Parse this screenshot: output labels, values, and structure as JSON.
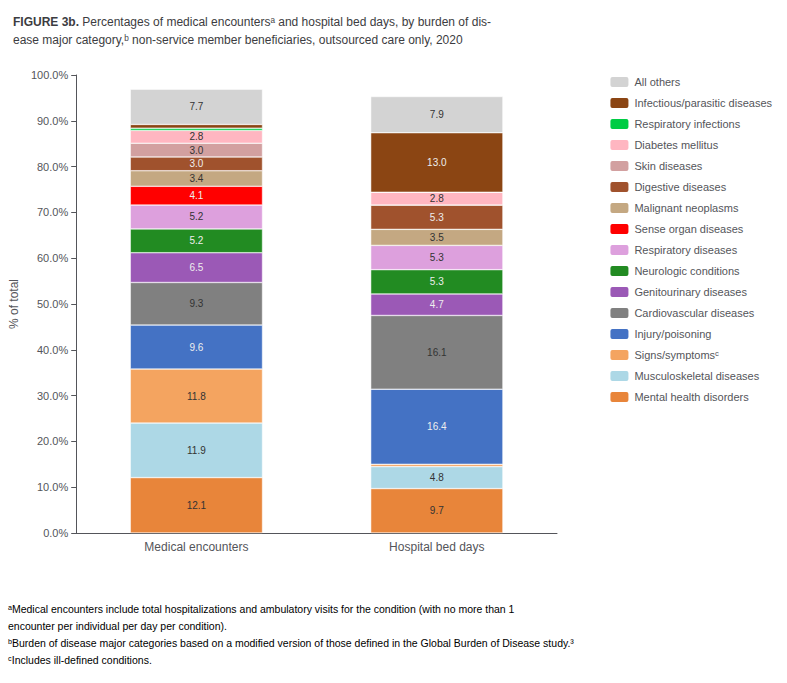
{
  "chart_data": {
    "type": "bar",
    "title": "FIGURE 3b.",
    "subtitle": "Percentages of medical encountersᵃ and hospital bed days, by burden of dis-\nease major category,ᵇ non-service member beneficiaries, outsourced care only, 2020",
    "categories": [
      "Medical encounters",
      "Hospital bed days"
    ],
    "series": [
      {
        "name": "Mental health disorders",
        "color": "#E8853A",
        "values": [
          12.1,
          9.7
        ],
        "value_labels": [
          "12.1",
          "9.7"
        ]
      },
      {
        "name": "Musculoskeletal diseases",
        "color": "#ADD8E6",
        "values": [
          11.9,
          4.8
        ],
        "value_labels": [
          "11.9",
          "4.8"
        ]
      },
      {
        "name": "Signs/symptomsᶜ",
        "color": "#F4A460",
        "values": [
          11.8,
          0.5
        ],
        "value_labels": [
          "11.8",
          null
        ]
      },
      {
        "name": "Injury/poisoning",
        "color": "#4472C4",
        "values": [
          9.6,
          16.4
        ],
        "value_labels": [
          "9.6",
          "16.4"
        ]
      },
      {
        "name": "Cardiovascular diseases",
        "color": "#808080",
        "values": [
          9.3,
          16.1
        ],
        "value_labels": [
          "9.3",
          "16.1"
        ]
      },
      {
        "name": "Genitourinary diseases",
        "color": "#9B59B6",
        "values": [
          6.5,
          4.7
        ],
        "value_labels": [
          "6.5",
          "4.7"
        ]
      },
      {
        "name": "Neurologic conditions",
        "color": "#228B22",
        "values": [
          5.2,
          5.3
        ],
        "value_labels": [
          "5.2",
          "5.3"
        ]
      },
      {
        "name": "Respiratory diseases",
        "color": "#DDA0DD",
        "values": [
          5.2,
          5.3
        ],
        "value_labels": [
          "5.2",
          "5.3"
        ]
      },
      {
        "name": "Sense organ diseases",
        "color": "#FF0000",
        "values": [
          4.1,
          0.0
        ],
        "value_labels": [
          "4.1",
          null
        ]
      },
      {
        "name": "Malignant neoplasms",
        "color": "#C4A882",
        "values": [
          3.4,
          3.5
        ],
        "value_labels": [
          "3.4",
          "3.5"
        ]
      },
      {
        "name": "Digestive diseases",
        "color": "#A0522D",
        "values": [
          3.0,
          5.3
        ],
        "value_labels": [
          "3.0",
          "5.3"
        ]
      },
      {
        "name": "Skin diseases",
        "color": "#D2A0A0",
        "values": [
          3.0,
          0.0
        ],
        "value_labels": [
          "3.0",
          null
        ]
      },
      {
        "name": "Diabetes mellitus",
        "color": "#FFB6C1",
        "values": [
          2.8,
          2.8
        ],
        "value_labels": [
          "2.8",
          "2.8"
        ]
      },
      {
        "name": "Respiratory infections",
        "color": "#00CC44",
        "values": [
          0.5,
          0.0
        ],
        "value_labels": [
          null,
          null
        ]
      },
      {
        "name": "Infectious/parasitic diseases",
        "color": "#8B4513",
        "values": [
          0.8,
          13.0
        ],
        "value_labels": [
          null,
          "13.0"
        ]
      },
      {
        "name": "All others",
        "color": "#D3D3D3",
        "values": [
          7.7,
          7.9
        ],
        "value_labels": [
          "7.7",
          "7.9"
        ]
      }
    ],
    "y_label": "% of total",
    "ylim": [
      0,
      100
    ],
    "yticks": [
      {
        "value": 0,
        "label": "0.0%"
      },
      {
        "value": 10,
        "label": "10.0%"
      },
      {
        "value": 20,
        "label": "20.0%"
      },
      {
        "value": 30,
        "label": "30.0%"
      },
      {
        "value": 40,
        "label": "40.0%"
      },
      {
        "value": 50,
        "label": "50.0%"
      },
      {
        "value": 60,
        "label": "60.0%"
      },
      {
        "value": 70,
        "label": "70.0%"
      },
      {
        "value": 80,
        "label": "80.0%"
      },
      {
        "value": 90,
        "label": "90.0%"
      },
      {
        "value": 100,
        "label": "100.0%"
      }
    ],
    "stacked": true,
    "data_labels": true,
    "grid": false,
    "legend": "right",
    "annotations": [
      "ᵃMedical encounters include total hospitalizations and ambulatory visits for the condition (with no more than 1",
      "encounter per individual per day per condition).",
      "ᵇBurden of disease major categories based on a modified version of those defined in the Global Burden of Disease study.³",
      "ᶜIncludes ill-defined conditions."
    ]
  }
}
